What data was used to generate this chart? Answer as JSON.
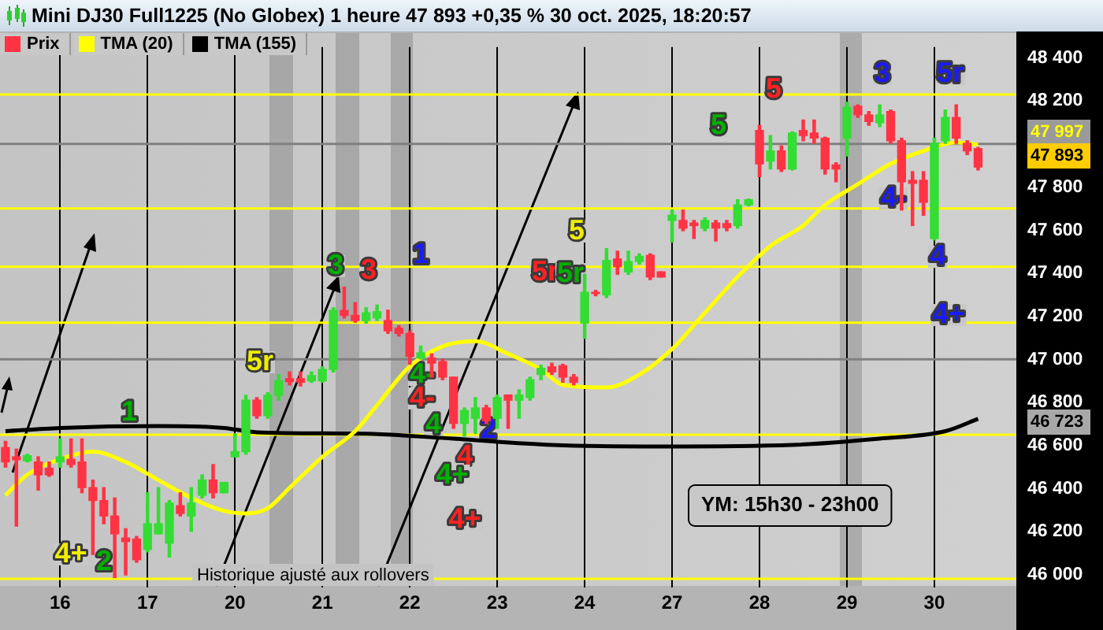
{
  "chart_data": {
    "type": "candlestick",
    "title": "Mini DJ30 Full1225 (No Globex) 1 heure 47 893 +0,35 % 30 oct. 2025, 18:20:57",
    "categories": [
      null,
      null,
      null,
      null,
      null,
      "16",
      null,
      null,
      null,
      null,
      null,
      null,
      null,
      "17",
      null,
      null,
      null,
      null,
      null,
      null,
      null,
      "20",
      null,
      null,
      null,
      null,
      null,
      null,
      null,
      "21",
      null,
      null,
      null,
      null,
      null,
      null,
      null,
      "22",
      null,
      null,
      null,
      null,
      null,
      null,
      null,
      "23",
      null,
      null,
      null,
      null,
      null,
      null,
      null,
      "24",
      null,
      null,
      null,
      null,
      null,
      null,
      null,
      "27",
      null,
      null,
      null,
      null,
      null,
      null,
      null,
      "28",
      null,
      null,
      null,
      null,
      null,
      null,
      null,
      "29",
      null,
      null,
      null,
      null,
      null,
      null,
      null,
      "30",
      null,
      null,
      null,
      null,
      null,
      null,
      null
    ],
    "ylim": [
      45940,
      48450
    ],
    "yticks": [
      {
        "value": 46000,
        "label": "46 000"
      },
      {
        "value": 46200,
        "label": "46 200"
      },
      {
        "value": 46400,
        "label": "46 400"
      },
      {
        "value": 46600,
        "label": "46 600"
      },
      {
        "value": 46800,
        "label": "46 800"
      },
      {
        "value": 47000,
        "label": "47 000"
      },
      {
        "value": 47200,
        "label": "47 200"
      },
      {
        "value": 47400,
        "label": "47 400"
      },
      {
        "value": 47600,
        "label": "47 600"
      },
      {
        "value": 47800,
        "label": "47 800"
      },
      {
        "value": 48000,
        "label": null
      },
      {
        "value": 48200,
        "label": "48 200"
      },
      {
        "value": 48400,
        "label": "48 400"
      }
    ],
    "grid": "x",
    "legend": "top left",
    "marker": "none",
    "series": [
      {
        "name": "Prix",
        "ohlc": [
          [
            46590,
            46619,
            46499,
            46523
          ],
          [
            46547,
            46583,
            46225,
            46533
          ],
          [
            46528,
            46559,
            46523,
            46552
          ],
          [
            46523,
            46547,
            46392,
            46463
          ],
          [
            46494,
            46523,
            46456,
            46463
          ],
          [
            46523,
            46630,
            46499,
            46547
          ],
          [
            46535,
            46630,
            46499,
            46511
          ],
          [
            46523,
            46630,
            46380,
            46404
          ],
          [
            46404,
            46439,
            46093,
            46344
          ],
          [
            46344,
            46404,
            46236,
            46272
          ],
          [
            46272,
            46356,
            45986,
            46189
          ],
          [
            46170,
            46213,
            45998,
            46153
          ],
          [
            46165,
            46177,
            46057,
            46069
          ],
          [
            46117,
            46380,
            46105,
            46236
          ],
          [
            46189,
            46404,
            46189,
            46236
          ],
          [
            46146,
            46344,
            46081,
            46332
          ],
          [
            46320,
            46380,
            46272,
            46284
          ],
          [
            46272,
            46404,
            46201,
            46332
          ],
          [
            46368,
            46463,
            46356,
            46439
          ],
          [
            46439,
            46511,
            46356,
            46380
          ],
          [
            46380,
            46428,
            46380,
            46428
          ],
          [
            46547,
            46654,
            46547,
            46571
          ],
          [
            46571,
            46833,
            46559,
            46810
          ],
          [
            46810,
            46822,
            46726,
            46738
          ],
          [
            46738,
            46845,
            46726,
            46833
          ],
          [
            46833,
            46929,
            46810,
            46900
          ],
          [
            46910,
            46941,
            46881,
            46896
          ],
          [
            46910,
            46941,
            46876,
            46893
          ],
          [
            46900,
            46941,
            46893,
            46924
          ],
          [
            46900,
            46965,
            46893,
            46953
          ],
          [
            46953,
            47239,
            46941,
            47227
          ],
          [
            47227,
            47335,
            47192,
            47204
          ],
          [
            47204,
            47263,
            47172,
            47180
          ],
          [
            47180,
            47239,
            47168,
            47216
          ],
          [
            47192,
            47252,
            47180,
            47221
          ],
          [
            47180,
            47228,
            47120,
            47132
          ],
          [
            47144,
            47156,
            47108,
            47120
          ],
          [
            47120,
            47132,
            46977,
            47013
          ],
          [
            47006,
            47061,
            47001,
            47030
          ],
          [
            47006,
            47025,
            46917,
            46982
          ],
          [
            46989,
            47001,
            46905,
            46917
          ],
          [
            46917,
            46917,
            46679,
            46702
          ],
          [
            46702,
            46774,
            46643,
            46762
          ],
          [
            46726,
            46822,
            46655,
            46774
          ],
          [
            46774,
            46786,
            46702,
            46714
          ],
          [
            46726,
            46834,
            46679,
            46822
          ],
          [
            46834,
            46834,
            46679,
            46810
          ],
          [
            46810,
            46858,
            46726,
            46834
          ],
          [
            46822,
            46917,
            46810,
            46905
          ],
          [
            46929,
            46972,
            46905,
            46958
          ],
          [
            46965,
            46982,
            46929,
            46941
          ],
          [
            46970,
            46977,
            46893,
            46917
          ],
          [
            46917,
            46929,
            46881,
            46893
          ],
          [
            47168,
            47395,
            47097,
            47311
          ],
          [
            47311,
            47320,
            47295,
            47305
          ],
          [
            47299,
            47514,
            47287,
            47459
          ],
          [
            47466,
            47502,
            47394,
            47430
          ],
          [
            47406,
            47502,
            47394,
            47454
          ],
          [
            47454,
            47490,
            47442,
            47478
          ],
          [
            47483,
            47490,
            47370,
            47382
          ],
          [
            47406,
            47406,
            47382,
            47382
          ],
          [
            47645,
            47693,
            47545,
            47669
          ],
          [
            47645,
            47693,
            47597,
            47609
          ],
          [
            47633,
            47645,
            47561,
            47621
          ],
          [
            47609,
            47657,
            47597,
            47645
          ],
          [
            47633,
            47645,
            47549,
            47609
          ],
          [
            47630,
            47645,
            47597,
            47612
          ],
          [
            47621,
            47741,
            47609,
            47717
          ],
          [
            47717,
            47745,
            47712,
            47741
          ],
          [
            48063,
            48087,
            47848,
            47908
          ],
          [
            47920,
            48039,
            47884,
            47968
          ],
          [
            47968,
            47991,
            47872,
            47884
          ],
          [
            47884,
            48056,
            47879,
            48051
          ],
          [
            48063,
            48111,
            48015,
            48039
          ],
          [
            48051,
            48111,
            48003,
            48027
          ],
          [
            48027,
            48032,
            47860,
            47884
          ],
          [
            47903,
            47913,
            47824,
            47884
          ],
          [
            48027,
            48194,
            47944,
            48170
          ],
          [
            48175,
            48182,
            48123,
            48135
          ],
          [
            48135,
            48151,
            48087,
            48104
          ],
          [
            48099,
            48182,
            48080,
            48135
          ],
          [
            48151,
            48158,
            48003,
            48015
          ],
          [
            48015,
            48027,
            47693,
            47824
          ],
          [
            47831,
            47872,
            47621,
            47817
          ],
          [
            47831,
            47872,
            47669,
            47729
          ],
          [
            47561,
            48027,
            47554,
            48003
          ],
          [
            48015,
            48158,
            48003,
            48123
          ],
          [
            48123,
            48182,
            48003,
            48027
          ],
          [
            48003,
            48015,
            47951,
            47968
          ],
          [
            47979,
            47984,
            47879,
            47893
          ],
          null,
          null,
          null
        ],
        "colors": [
          "#ff3344",
          "#ff3344",
          "#33dd33",
          "#ff3344",
          "#ff3344",
          "#33dd33",
          "#ff3344",
          "#ff3344",
          "#ff3344",
          "#ff3344",
          "#ff3344",
          "#ff3344",
          "#ff3344",
          "#33dd33",
          "#33dd33",
          "#33dd33",
          "#ff3344",
          "#33dd33",
          "#33dd33",
          "#ff3344",
          "#33dd33",
          "#33dd33",
          "#33dd33",
          "#ff3344",
          "#33dd33",
          "#33dd33",
          "#ff3344",
          "#ff3344",
          "#33dd33",
          "#33dd33",
          "#33dd33",
          "#ff3344",
          "#ff3344",
          "#33dd33",
          "#33dd33",
          "#ff3344",
          "#ff3344",
          "#ff3344",
          "#33dd33",
          "#ff3344",
          "#ff3344",
          "#ff3344",
          "#33dd33",
          "#33dd33",
          "#ff3344",
          "#33dd33",
          "#ff3344",
          "#33dd33",
          "#33dd33",
          "#33dd33",
          "#ff3344",
          "#ff3344",
          "#ff3344",
          "#33dd33",
          "#ff3344",
          "#33dd33",
          "#ff3344",
          "#33dd33",
          "#33dd33",
          "#ff3344",
          "#ff3344",
          "#33dd33",
          "#ff3344",
          "#ff3344",
          "#33dd33",
          "#ff3344",
          "#ff3344",
          "#33dd33",
          "#33dd33",
          "#ff3344",
          "#33dd33",
          "#ff3344",
          "#33dd33",
          "#ff3344",
          "#ff3344",
          "#ff3344",
          "#ff3344",
          "#33dd33",
          "#ff3344",
          "#ff3344",
          "#33dd33",
          "#ff3344",
          "#ff3344",
          "#ff3344",
          "#ff3344",
          "#33dd33",
          "#33dd33",
          "#ff3344",
          "#ff3344",
          "#ff3344",
          null,
          null,
          null
        ]
      },
      {
        "type": "line",
        "name": "TMA (20)",
        "color": "#ffff00",
        "values": [
          46368,
          null,
          46464,
          null,
          null,
          46536,
          null,
          null,
          46571,
          null,
          null,
          46523,
          null,
          null,
          46439,
          null,
          null,
          46356,
          null,
          null,
          46296,
          null,
          46284,
          null,
          46308,
          null,
          46403,
          null,
          null,
          46547,
          null,
          null,
          46666,
          null,
          46786,
          null,
          null,
          46967,
          null,
          null,
          47060,
          null,
          null,
          47084,
          null,
          null,
          47025,
          null,
          null,
          46953,
          null,
          46881,
          null,
          null,
          null,
          46869,
          null,
          null,
          46929,
          null,
          null,
          47048,
          null,
          null,
          47216,
          null,
          null,
          47383,
          null,
          null,
          47526,
          null,
          null,
          47621,
          null,
          47717,
          null,
          null,
          47813,
          null,
          null,
          47908,
          null,
          null,
          47968,
          null,
          null,
          48008,
          null,
          47997,
          null,
          null,
          null
        ]
      },
      {
        "type": "line",
        "name": "TMA (155)",
        "color": "#000000",
        "values": [
          46666,
          null,
          null,
          null,
          null,
          46681,
          null,
          null,
          null,
          null,
          null,
          null,
          null,
          null,
          46690,
          null,
          null,
          null,
          null,
          null,
          46681,
          null,
          null,
          46661,
          null,
          null,
          null,
          null,
          null,
          null,
          null,
          null,
          null,
          46654,
          null,
          null,
          null,
          null,
          null,
          null,
          null,
          46631,
          null,
          null,
          null,
          null,
          null,
          null,
          null,
          null,
          46602,
          null,
          null,
          null,
          null,
          null,
          null,
          null,
          null,
          null,
          46595,
          null,
          null,
          null,
          null,
          null,
          null,
          null,
          null,
          null,
          null,
          null,
          46602,
          null,
          null,
          null,
          null,
          null,
          null,
          null,
          46631,
          null,
          null,
          null,
          null,
          null,
          46666,
          null,
          null,
          46723,
          null,
          null,
          null
        ]
      }
    ],
    "ref_lines": [
      {
        "axis": "y",
        "value": 48230,
        "color": "#ffff00"
      },
      {
        "axis": "y",
        "value": 47700,
        "color": "#ffff00"
      },
      {
        "axis": "y",
        "value": 47430,
        "color": "#ffff00"
      },
      {
        "axis": "y",
        "value": 47170,
        "color": "#ffff00"
      },
      {
        "axis": "y",
        "value": 46650,
        "color": "#ffff00"
      },
      {
        "axis": "y",
        "value": 45980,
        "color": "#ffff00"
      },
      {
        "axis": "y",
        "value": 48000,
        "color": "#808080"
      },
      {
        "axis": "y",
        "value": 47000,
        "color": "#808080"
      }
    ],
    "annotations": [
      "Historique ajusté aux rollovers",
      "YM: 15h30 - 23h00",
      "47 997",
      "47 893",
      "46 723",
      "1",
      "2",
      "4+",
      "5r",
      "3",
      "3",
      "1",
      "4-",
      "4-",
      "4",
      "2",
      "4",
      "4+",
      "4+",
      "5",
      "5r",
      "5r",
      "5",
      "5",
      "3",
      "5r",
      "4-",
      "4",
      "4+"
    ]
  }
}
